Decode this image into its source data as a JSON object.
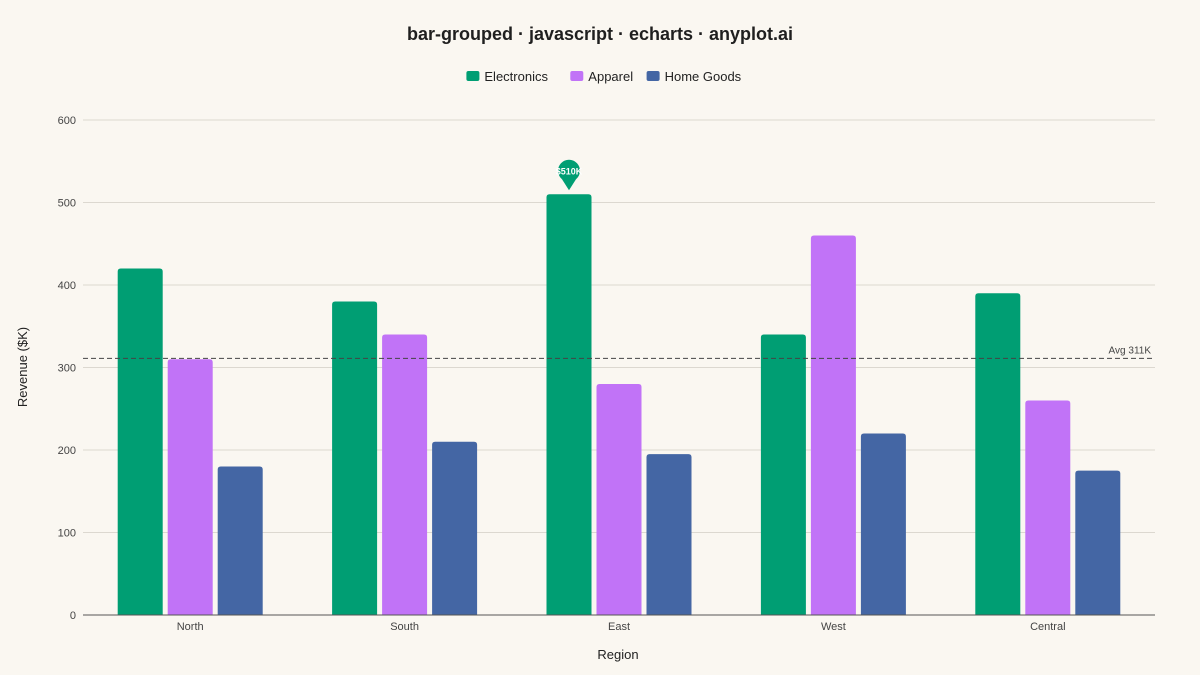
{
  "chart_data": {
    "type": "bar",
    "title": "bar-grouped · javascript · echarts · anyplot.ai",
    "xlabel": "Region",
    "ylabel": "Revenue ($K)",
    "ylim": [
      0,
      600
    ],
    "yticks": [
      0,
      100,
      200,
      300,
      400,
      500,
      600
    ],
    "categories": [
      "North",
      "South",
      "East",
      "West",
      "Central"
    ],
    "series": [
      {
        "name": "Electronics",
        "color": "#009E73",
        "values": [
          420,
          380,
          510,
          340,
          390
        ]
      },
      {
        "name": "Apparel",
        "color": "#C173F7",
        "values": [
          310,
          340,
          280,
          460,
          260
        ]
      },
      {
        "name": "Home Goods",
        "color": "#4466A4",
        "values": [
          180,
          210,
          195,
          220,
          175
        ]
      }
    ],
    "legend_position": "top-center",
    "grid": true,
    "average_line": {
      "value": 311,
      "label": "Avg 311K"
    },
    "highlight": {
      "series": "Electronics",
      "category": "East",
      "label": "$510K"
    }
  }
}
